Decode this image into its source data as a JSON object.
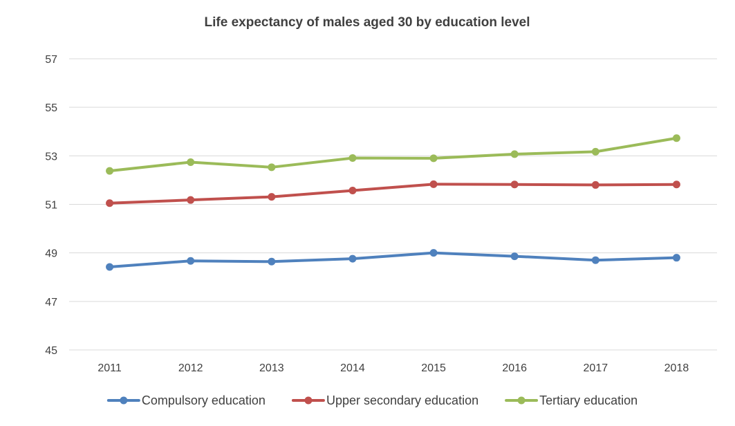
{
  "chart_data": {
    "type": "line",
    "title": "Life expectancy of males aged 30 by education level",
    "xlabel": "",
    "ylabel": "",
    "categories": [
      "2011",
      "2012",
      "2013",
      "2014",
      "2015",
      "2016",
      "2017",
      "2018"
    ],
    "ylim": [
      45,
      57
    ],
    "yticks": [
      45,
      47,
      49,
      51,
      53,
      55,
      57
    ],
    "grid": true,
    "legend_position": "bottom",
    "series": [
      {
        "name": "Compulsory education",
        "color": "#4f81bd",
        "values": [
          48.42,
          48.67,
          48.64,
          48.76,
          49.0,
          48.86,
          48.7,
          48.8
        ]
      },
      {
        "name": "Upper secondary education",
        "color": "#c0504d",
        "values": [
          51.05,
          51.18,
          51.31,
          51.57,
          51.83,
          51.82,
          51.8,
          51.82
        ]
      },
      {
        "name": "Tertiary education",
        "color": "#9bbb59",
        "values": [
          52.38,
          52.74,
          52.53,
          52.91,
          52.9,
          53.07,
          53.17,
          53.73
        ]
      }
    ]
  }
}
